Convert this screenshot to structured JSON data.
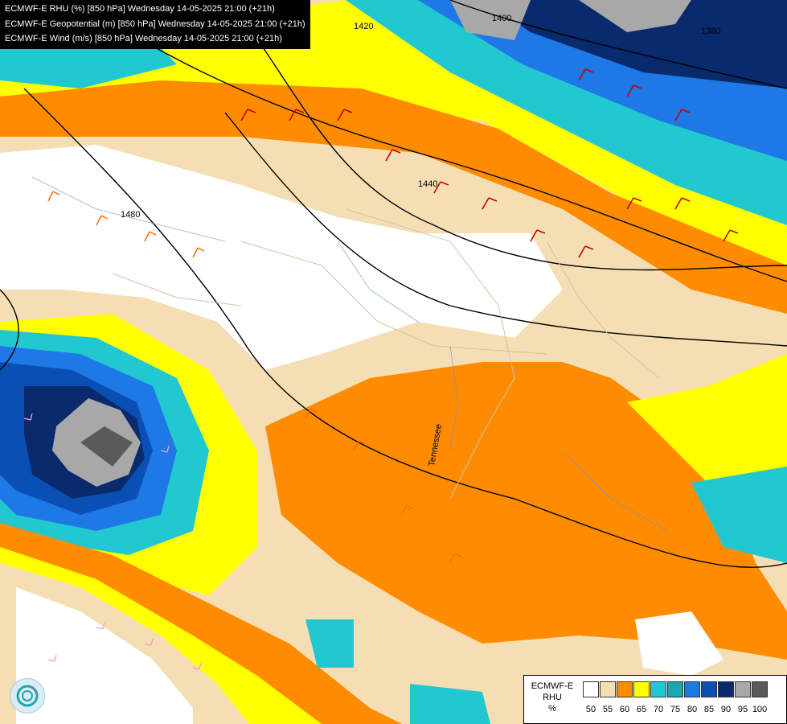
{
  "header": {
    "line1": "ECMWF-E RHU (%) [850 hPa] Wednesday 14-05-2025 21:00 (+21h)",
    "line2": "ECMWF-E Geopotential (m) [850 hPa] Wednesday 14-05-2025 21:00 (+21h)",
    "line3": "ECMWF-E Wind (m/s) [850 hPa] Wednesday 14-05-2025 21:00 (+21h)"
  },
  "map": {
    "contour_labels": [
      "1400",
      "1380",
      "1420",
      "1440",
      "1480"
    ],
    "region_label": "Tennessee"
  },
  "legend": {
    "title_lines": [
      "ECMWF-E",
      "RHU",
      "%"
    ],
    "colors": [
      "#ffffff",
      "#f5deb3",
      "#ff8c00",
      "#ffff00",
      "#22c8d0",
      "#1aa7b0",
      "#1e78e6",
      "#0a50b4",
      "#0a2a6e",
      "#a8a8a8",
      "#5a5a5a"
    ],
    "ticks": [
      "50",
      "55",
      "60",
      "65",
      "70",
      "75",
      "80",
      "85",
      "90",
      "95",
      "100"
    ]
  },
  "logo": {
    "icon": "ecmwf-logo-icon"
  }
}
